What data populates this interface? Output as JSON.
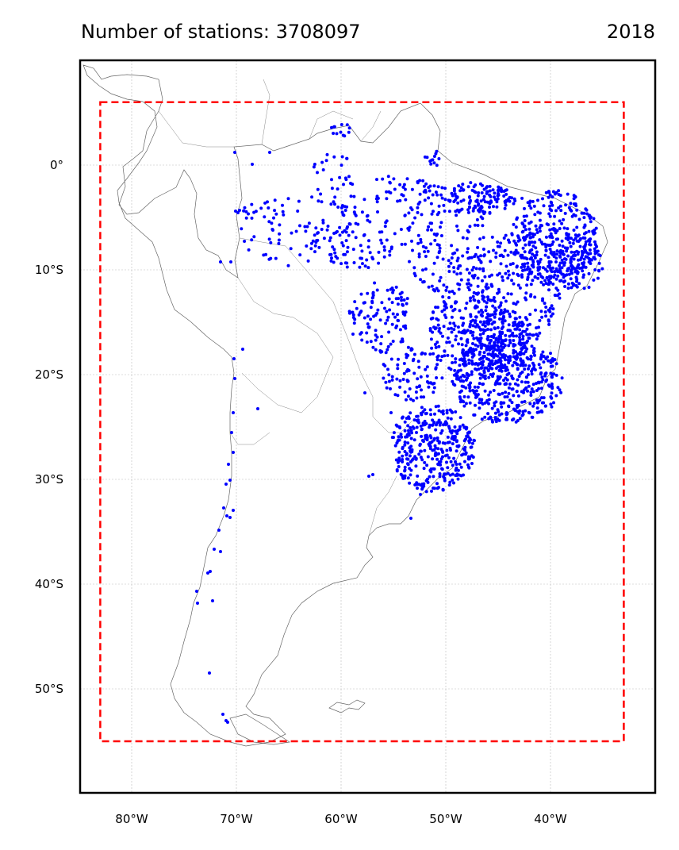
{
  "header": {
    "title": "Number of stations: 3708097",
    "year": "2018"
  },
  "map": {
    "region": "South America",
    "projection": "PlateCarree",
    "lon_range": [
      -85,
      -30
    ],
    "lat_range": [
      -60,
      10
    ],
    "lon_ticks": [
      {
        "value": -80,
        "label": "80°W"
      },
      {
        "value": -70,
        "label": "70°W"
      },
      {
        "value": -60,
        "label": "60°W"
      },
      {
        "value": -50,
        "label": "50°W"
      },
      {
        "value": -40,
        "label": "40°W"
      }
    ],
    "lat_ticks": [
      {
        "value": 0,
        "label": "0°"
      },
      {
        "value": -10,
        "label": "10°S"
      },
      {
        "value": -20,
        "label": "20°S"
      },
      {
        "value": -30,
        "label": "30°S"
      },
      {
        "value": -40,
        "label": "40°S"
      },
      {
        "value": -50,
        "label": "50°S"
      }
    ],
    "grid": true,
    "domain_box": {
      "lon": [
        -83,
        -33
      ],
      "lat": [
        -55,
        6
      ],
      "color": "#ff0000",
      "style": "dashed"
    },
    "station_color": "#0000ff",
    "coastline_color": "#666666"
  }
}
